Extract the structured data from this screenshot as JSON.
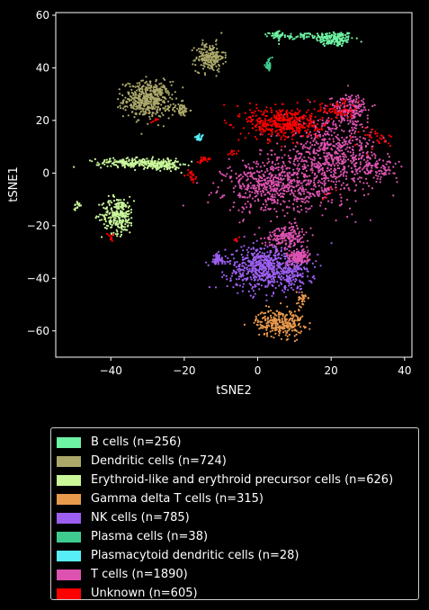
{
  "chart_data": {
    "type": "scatter",
    "title": "",
    "xlabel": "tSNE2",
    "ylabel": "tSNE1",
    "xlim": [
      -55,
      42
    ],
    "ylim": [
      -70,
      61
    ],
    "xticks": [
      -40,
      -20,
      0,
      20,
      40
    ],
    "yticks": [
      60,
      40,
      20,
      0,
      -20,
      -40,
      -60
    ],
    "xtick_labels": [
      "−40",
      "−20",
      "0",
      "20",
      "40"
    ],
    "ytick_labels": [
      "60",
      "40",
      "20",
      "0",
      "−20",
      "−40",
      "−60"
    ],
    "grid": false,
    "legend_position": "below",
    "series": [
      {
        "name": "B cells (n=256)",
        "color": "#6ef2a3",
        "clusters": [
          {
            "cx": 21,
            "cy": 51,
            "sx": 2.6,
            "sy": 1.5,
            "n": 160
          },
          {
            "cx": 12,
            "cy": 52,
            "sx": 4.0,
            "sy": 0.7,
            "n": 60
          },
          {
            "cx": 5,
            "cy": 52.5,
            "sx": 1.0,
            "sy": 0.6,
            "n": 36
          }
        ]
      },
      {
        "name": "Dendritic cells (n=724)",
        "color": "#aca86a",
        "clusters": [
          {
            "cx": -30,
            "cy": 28,
            "sx": 3.2,
            "sy": 3.4,
            "n": 470
          },
          {
            "cx": -13,
            "cy": 44,
            "sx": 1.9,
            "sy": 2.7,
            "n": 200
          },
          {
            "cx": -21,
            "cy": 24,
            "sx": 1.2,
            "sy": 1.2,
            "n": 54
          }
        ]
      },
      {
        "name": "Erythroid-like and erythroid precursor cells (n=626)",
        "color": "#c9f79a",
        "clusters": [
          {
            "cx": -38,
            "cy": -16,
            "sx": 2.2,
            "sy": 3.5,
            "n": 260
          },
          {
            "cx": -34,
            "cy": 4,
            "sx": 5.0,
            "sy": 0.8,
            "n": 200
          },
          {
            "cx": -26,
            "cy": 3,
            "sx": 2.5,
            "sy": 1.0,
            "n": 150
          },
          {
            "cx": -49,
            "cy": -12,
            "sx": 0.6,
            "sy": 0.8,
            "n": 16
          }
        ]
      },
      {
        "name": "Gamma delta T cells (n=315)",
        "color": "#e9994d",
        "clusters": [
          {
            "cx": 6,
            "cy": -57,
            "sx": 3.2,
            "sy": 2.6,
            "n": 280
          },
          {
            "cx": 12,
            "cy": -48,
            "sx": 0.7,
            "sy": 1.5,
            "n": 35
          }
        ]
      },
      {
        "name": "NK cells (n=785)",
        "color": "#9d5ff2",
        "clusters": [
          {
            "cx": 2,
            "cy": -36,
            "sx": 5.0,
            "sy": 4.3,
            "n": 600
          },
          {
            "cx": 10,
            "cy": -38,
            "sx": 2.5,
            "sy": 3.0,
            "n": 120
          },
          {
            "cx": -11,
            "cy": -33,
            "sx": 1.2,
            "sy": 1.2,
            "n": 65
          }
        ]
      },
      {
        "name": "Plasma cells (n=38)",
        "color": "#3ecb8e",
        "clusters": [
          {
            "cx": 3,
            "cy": 41,
            "sx": 0.5,
            "sy": 1.3,
            "n": 38
          }
        ]
      },
      {
        "name": "Plasmacytoid dendritic cells (n=28)",
        "color": "#58eef7",
        "clusters": [
          {
            "cx": -16,
            "cy": 13.5,
            "sx": 0.5,
            "sy": 0.5,
            "n": 28
          }
        ]
      },
      {
        "name": "T cells (n=1890)",
        "color": "#dd52b0",
        "clusters": [
          {
            "cx": 20,
            "cy": 6,
            "sx": 6.5,
            "sy": 7.0,
            "n": 700
          },
          {
            "cx": 5,
            "cy": -5,
            "sx": 7.0,
            "sy": 5.0,
            "n": 600
          },
          {
            "cx": 25,
            "cy": 24,
            "sx": 2.6,
            "sy": 3.0,
            "n": 180
          },
          {
            "cx": 8,
            "cy": -24,
            "sx": 3.0,
            "sy": 2.0,
            "n": 180
          },
          {
            "cx": 33,
            "cy": 2,
            "sx": 2.5,
            "sy": 2.0,
            "n": 80
          },
          {
            "cx": 11,
            "cy": -32,
            "sx": 1.5,
            "sy": 1.3,
            "n": 150
          }
        ]
      },
      {
        "name": "Unknown (n=605)",
        "color": "#ff0000",
        "clusters": [
          {
            "cx": 7,
            "cy": 19,
            "sx": 5.0,
            "sy": 3.2,
            "n": 430
          },
          {
            "cx": 22,
            "cy": 24,
            "sx": 2.0,
            "sy": 1.8,
            "n": 60
          },
          {
            "cx": 32,
            "cy": 14,
            "sx": 3.0,
            "sy": 2.0,
            "n": 30
          },
          {
            "cx": -15,
            "cy": 5,
            "sx": 0.7,
            "sy": 0.7,
            "n": 25
          },
          {
            "cx": -18,
            "cy": -1,
            "sx": 0.7,
            "sy": 0.9,
            "n": 20
          },
          {
            "cx": -7,
            "cy": 8,
            "sx": 0.6,
            "sy": 0.6,
            "n": 10
          },
          {
            "cx": -40,
            "cy": -24,
            "sx": 0.5,
            "sy": 0.8,
            "n": 10
          },
          {
            "cx": -6,
            "cy": -25,
            "sx": 0.5,
            "sy": 0.6,
            "n": 8
          },
          {
            "cx": -28,
            "cy": 20,
            "sx": 0.6,
            "sy": 0.6,
            "n": 6
          },
          {
            "cx": 20,
            "cy": -8,
            "sx": 1.5,
            "sy": 1.5,
            "n": 6
          }
        ]
      }
    ]
  }
}
